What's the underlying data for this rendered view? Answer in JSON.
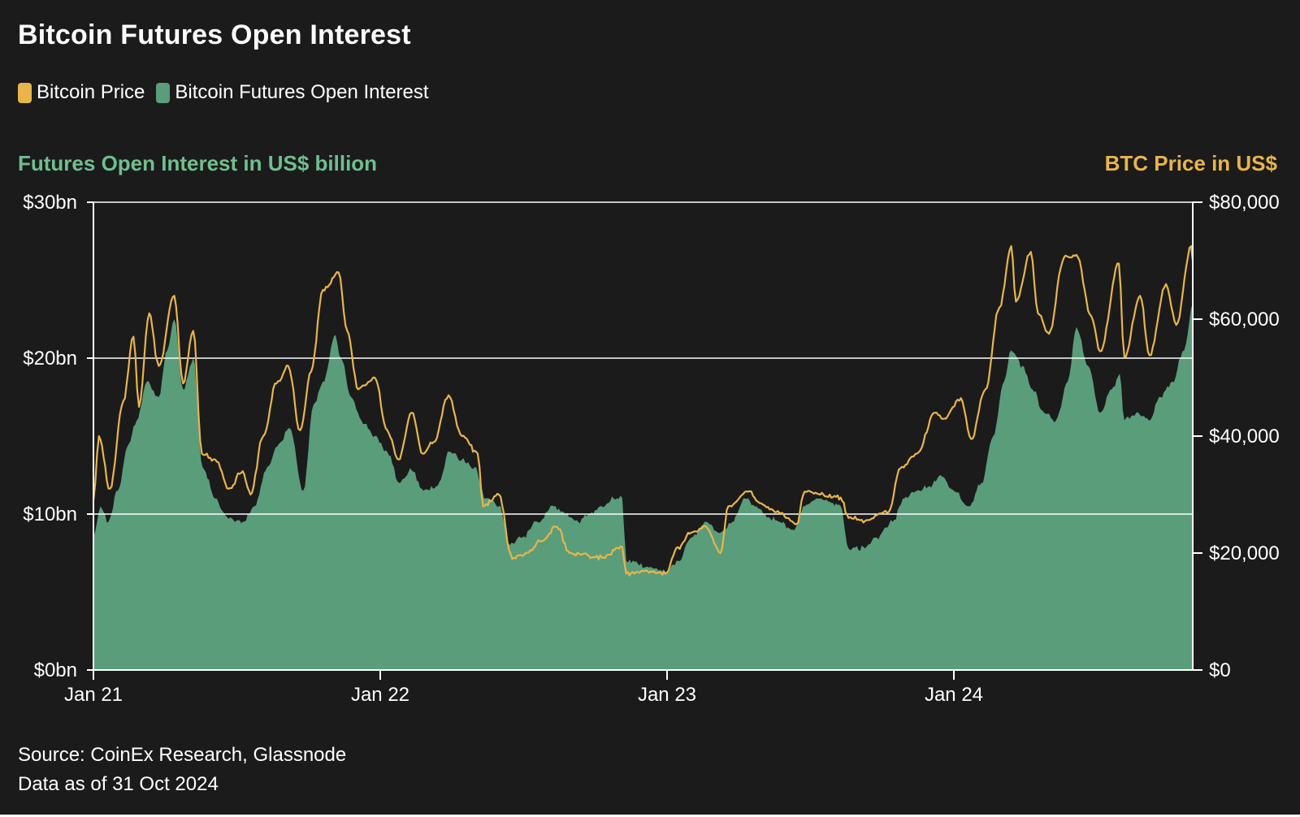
{
  "title": "Bitcoin Futures Open Interest",
  "colors": {
    "background": "#1b1b1b",
    "price": "#e8b54b",
    "open_interest": "#5a9d7b",
    "left_axis_title": "#6fbf8f",
    "right_axis_title": "#e8b54b",
    "grid": "#ffffff"
  },
  "legend": {
    "items": [
      {
        "label": "Bitcoin Price",
        "color": "#e8b54b"
      },
      {
        "label": "Bitcoin Futures Open Interest",
        "color": "#5a9d7b"
      }
    ]
  },
  "axes": {
    "left_title": "Futures Open Interest in US$ billion",
    "right_title": "BTC Price in US$"
  },
  "footer": {
    "source": "Source: CoinEx Research, Glassnode",
    "data_as_of": "Data as of 31 Oct 2024"
  },
  "chart_data": {
    "type": "area",
    "title": "Bitcoin Futures Open Interest",
    "x_range": [
      "2021-01-01",
      "2024-10-31"
    ],
    "x_ticks": [
      {
        "date": "2021-01-01",
        "label": "Jan 21"
      },
      {
        "date": "2022-01-01",
        "label": "Jan 22"
      },
      {
        "date": "2023-01-01",
        "label": "Jan 23"
      },
      {
        "date": "2024-01-01",
        "label": "Jan 24"
      }
    ],
    "y_left": {
      "label": "Futures Open Interest in US$ billion",
      "range": [
        0,
        30
      ],
      "ticks": [
        {
          "value": 0,
          "label": "$0bn"
        },
        {
          "value": 10,
          "label": "$10bn"
        },
        {
          "value": 20,
          "label": "$20bn"
        },
        {
          "value": 30,
          "label": "$30bn"
        }
      ],
      "gridlines": [
        10,
        20,
        30
      ]
    },
    "y_right": {
      "label": "BTC Price in US$",
      "range": [
        0,
        80000
      ],
      "ticks": [
        {
          "value": 0,
          "label": "$0"
        },
        {
          "value": 20000,
          "label": "$20,000"
        },
        {
          "value": 40000,
          "label": "$40,000"
        },
        {
          "value": 60000,
          "label": "$60,000"
        },
        {
          "value": 80000,
          "label": "$80,000"
        }
      ]
    },
    "series": [
      {
        "name": "Bitcoin Futures Open Interest",
        "kind": "area",
        "axis": "left",
        "color": "#5a9d7b",
        "points": [
          [
            "2021-01-01",
            8.5
          ],
          [
            "2021-01-10",
            10.5
          ],
          [
            "2021-01-20",
            9.5
          ],
          [
            "2021-02-01",
            11.5
          ],
          [
            "2021-02-15",
            14.5
          ],
          [
            "2021-02-25",
            16.0
          ],
          [
            "2021-03-10",
            18.5
          ],
          [
            "2021-03-25",
            17.5
          ],
          [
            "2021-04-05",
            20.5
          ],
          [
            "2021-04-14",
            22.5
          ],
          [
            "2021-04-25",
            18.0
          ],
          [
            "2021-05-08",
            20.0
          ],
          [
            "2021-05-20",
            13.0
          ],
          [
            "2021-06-05",
            11.0
          ],
          [
            "2021-06-20",
            9.8
          ],
          [
            "2021-07-10",
            9.5
          ],
          [
            "2021-07-25",
            10.5
          ],
          [
            "2021-08-10",
            13.0
          ],
          [
            "2021-08-25",
            14.5
          ],
          [
            "2021-09-08",
            15.5
          ],
          [
            "2021-09-25",
            11.5
          ],
          [
            "2021-10-08",
            17.0
          ],
          [
            "2021-10-20",
            18.5
          ],
          [
            "2021-11-05",
            21.5
          ],
          [
            "2021-11-12",
            20.0
          ],
          [
            "2021-11-25",
            17.5
          ],
          [
            "2021-12-08",
            16.0
          ],
          [
            "2021-12-25",
            15.0
          ],
          [
            "2022-01-10",
            14.0
          ],
          [
            "2022-01-25",
            12.0
          ],
          [
            "2022-02-10",
            12.8
          ],
          [
            "2022-02-25",
            11.5
          ],
          [
            "2022-03-15",
            11.8
          ],
          [
            "2022-03-30",
            14.0
          ],
          [
            "2022-04-15",
            13.5
          ],
          [
            "2022-05-01",
            13.0
          ],
          [
            "2022-05-15",
            11.0
          ],
          [
            "2022-06-01",
            10.5
          ],
          [
            "2022-06-15",
            8.0
          ],
          [
            "2022-07-01",
            8.5
          ],
          [
            "2022-07-20",
            9.5
          ],
          [
            "2022-08-10",
            10.5
          ],
          [
            "2022-08-25",
            10.0
          ],
          [
            "2022-09-10",
            9.5
          ],
          [
            "2022-09-25",
            10.0
          ],
          [
            "2022-10-10",
            10.5
          ],
          [
            "2022-10-25",
            11.0
          ],
          [
            "2022-11-05",
            11.0
          ],
          [
            "2022-11-10",
            7.0
          ],
          [
            "2022-11-25",
            6.8
          ],
          [
            "2022-12-15",
            6.5
          ],
          [
            "2023-01-01",
            6.3
          ],
          [
            "2023-01-15",
            7.0
          ],
          [
            "2023-02-01",
            8.5
          ],
          [
            "2023-02-20",
            9.5
          ],
          [
            "2023-03-10",
            8.8
          ],
          [
            "2023-03-25",
            9.5
          ],
          [
            "2023-04-10",
            11.0
          ],
          [
            "2023-04-25",
            10.5
          ],
          [
            "2023-05-10",
            9.8
          ],
          [
            "2023-05-25",
            9.5
          ],
          [
            "2023-06-10",
            9.0
          ],
          [
            "2023-06-25",
            10.5
          ],
          [
            "2023-07-10",
            11.0
          ],
          [
            "2023-07-25",
            10.8
          ],
          [
            "2023-08-10",
            10.5
          ],
          [
            "2023-08-20",
            7.8
          ],
          [
            "2023-09-10",
            7.8
          ],
          [
            "2023-09-25",
            8.5
          ],
          [
            "2023-10-15",
            9.5
          ],
          [
            "2023-10-30",
            11.0
          ],
          [
            "2023-11-15",
            11.5
          ],
          [
            "2023-12-01",
            11.8
          ],
          [
            "2023-12-15",
            12.5
          ],
          [
            "2024-01-01",
            11.5
          ],
          [
            "2024-01-20",
            10.5
          ],
          [
            "2024-02-05",
            12.0
          ],
          [
            "2024-02-20",
            15.0
          ],
          [
            "2024-03-05",
            18.5
          ],
          [
            "2024-03-14",
            20.5
          ],
          [
            "2024-03-28",
            19.5
          ],
          [
            "2024-04-10",
            18.0
          ],
          [
            "2024-04-25",
            16.5
          ],
          [
            "2024-05-10",
            16.0
          ],
          [
            "2024-05-25",
            18.5
          ],
          [
            "2024-06-05",
            22.0
          ],
          [
            "2024-06-20",
            19.5
          ],
          [
            "2024-07-05",
            16.5
          ],
          [
            "2024-07-20",
            18.0
          ],
          [
            "2024-07-30",
            19.0
          ],
          [
            "2024-08-05",
            16.0
          ],
          [
            "2024-08-20",
            16.5
          ],
          [
            "2024-09-05",
            16.0
          ],
          [
            "2024-09-20",
            17.5
          ],
          [
            "2024-10-05",
            18.5
          ],
          [
            "2024-10-20",
            20.5
          ],
          [
            "2024-10-31",
            23.5
          ]
        ]
      },
      {
        "name": "Bitcoin Price",
        "kind": "line",
        "axis": "right",
        "color": "#e8b54b",
        "points": [
          [
            "2021-01-01",
            29000
          ],
          [
            "2021-01-08",
            40000
          ],
          [
            "2021-01-22",
            31000
          ],
          [
            "2021-02-08",
            46000
          ],
          [
            "2021-02-21",
            57000
          ],
          [
            "2021-02-28",
            45000
          ],
          [
            "2021-03-13",
            61000
          ],
          [
            "2021-03-25",
            52000
          ],
          [
            "2021-04-14",
            64000
          ],
          [
            "2021-04-25",
            49000
          ],
          [
            "2021-05-08",
            58000
          ],
          [
            "2021-05-19",
            37000
          ],
          [
            "2021-06-05",
            36000
          ],
          [
            "2021-06-22",
            31000
          ],
          [
            "2021-07-10",
            34000
          ],
          [
            "2021-07-20",
            30000
          ],
          [
            "2021-08-05",
            40000
          ],
          [
            "2021-08-22",
            49000
          ],
          [
            "2021-09-06",
            52000
          ],
          [
            "2021-09-21",
            41000
          ],
          [
            "2021-10-05",
            51000
          ],
          [
            "2021-10-20",
            65000
          ],
          [
            "2021-11-09",
            68000
          ],
          [
            "2021-11-20",
            58000
          ],
          [
            "2021-12-04",
            48000
          ],
          [
            "2021-12-25",
            50000
          ],
          [
            "2022-01-10",
            41000
          ],
          [
            "2022-01-24",
            36000
          ],
          [
            "2022-02-10",
            44000
          ],
          [
            "2022-02-24",
            37000
          ],
          [
            "2022-03-10",
            39000
          ],
          [
            "2022-03-29",
            47000
          ],
          [
            "2022-04-15",
            40000
          ],
          [
            "2022-05-05",
            37000
          ],
          [
            "2022-05-12",
            28000
          ],
          [
            "2022-06-01",
            30000
          ],
          [
            "2022-06-18",
            19000
          ],
          [
            "2022-07-05",
            20000
          ],
          [
            "2022-07-25",
            22000
          ],
          [
            "2022-08-14",
            24500
          ],
          [
            "2022-08-30",
            20000
          ],
          [
            "2022-09-15",
            19800
          ],
          [
            "2022-10-10",
            19200
          ],
          [
            "2022-11-05",
            21000
          ],
          [
            "2022-11-10",
            16500
          ],
          [
            "2022-12-01",
            17000
          ],
          [
            "2022-12-30",
            16500
          ],
          [
            "2023-01-15",
            21000
          ],
          [
            "2023-02-01",
            23500
          ],
          [
            "2023-02-20",
            24500
          ],
          [
            "2023-03-10",
            20000
          ],
          [
            "2023-03-20",
            28000
          ],
          [
            "2023-04-14",
            30500
          ],
          [
            "2023-05-01",
            28500
          ],
          [
            "2023-05-20",
            27000
          ],
          [
            "2023-06-15",
            25000
          ],
          [
            "2023-06-25",
            30500
          ],
          [
            "2023-07-15",
            30000
          ],
          [
            "2023-08-10",
            29500
          ],
          [
            "2023-08-20",
            26000
          ],
          [
            "2023-09-10",
            25500
          ],
          [
            "2023-09-25",
            26500
          ],
          [
            "2023-10-10",
            27000
          ],
          [
            "2023-10-25",
            34500
          ],
          [
            "2023-11-15",
            37000
          ],
          [
            "2023-12-08",
            44000
          ],
          [
            "2023-12-20",
            43000
          ],
          [
            "2024-01-10",
            46500
          ],
          [
            "2024-01-23",
            39500
          ],
          [
            "2024-02-10",
            48000
          ],
          [
            "2024-02-28",
            62000
          ],
          [
            "2024-03-14",
            72500
          ],
          [
            "2024-03-20",
            63000
          ],
          [
            "2024-04-08",
            71500
          ],
          [
            "2024-04-17",
            61000
          ],
          [
            "2024-05-01",
            57500
          ],
          [
            "2024-05-20",
            70500
          ],
          [
            "2024-06-05",
            71000
          ],
          [
            "2024-06-24",
            60500
          ],
          [
            "2024-07-05",
            54500
          ],
          [
            "2024-07-29",
            69500
          ],
          [
            "2024-08-05",
            53500
          ],
          [
            "2024-08-25",
            64000
          ],
          [
            "2024-09-06",
            53800
          ],
          [
            "2024-09-27",
            66000
          ],
          [
            "2024-10-10",
            59000
          ],
          [
            "2024-10-29",
            72500
          ],
          [
            "2024-10-31",
            70000
          ]
        ]
      }
    ],
    "legend": "top-left",
    "grid": true
  }
}
